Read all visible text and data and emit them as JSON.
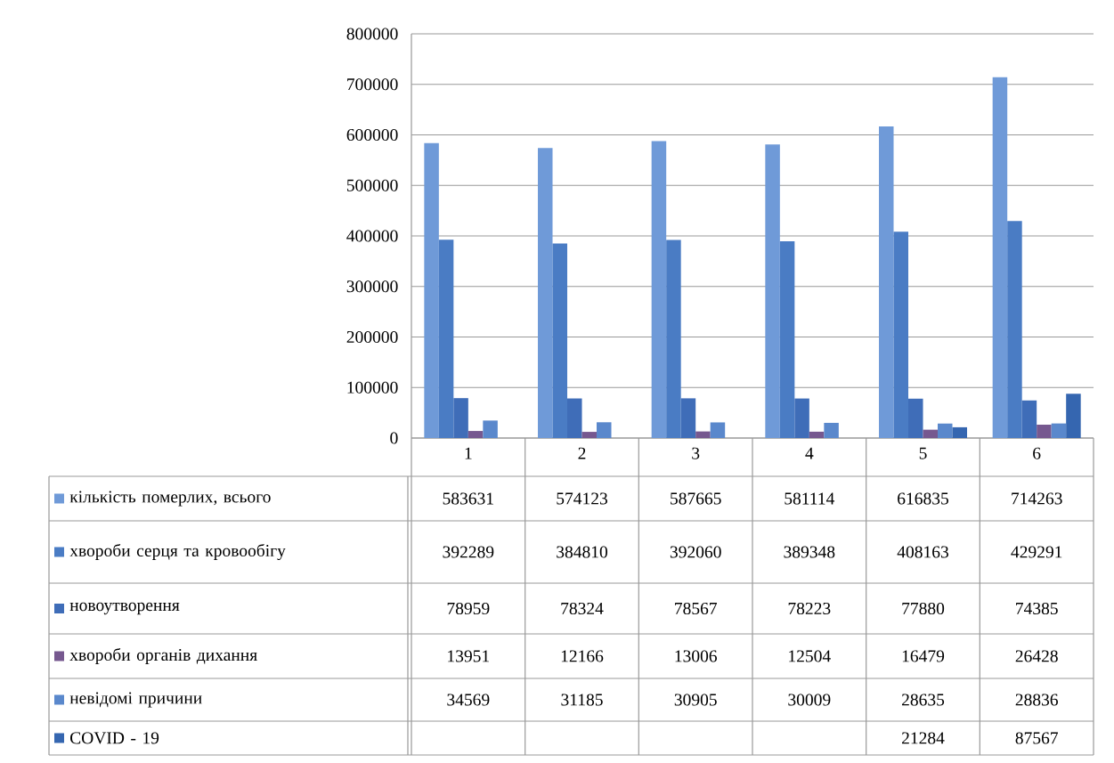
{
  "chart_data": {
    "type": "bar",
    "categories": [
      "1",
      "2",
      "3",
      "4",
      "5",
      "6"
    ],
    "series": [
      {
        "name": "кількість померлих, всього",
        "color": "#6f9ad8",
        "values": [
          583631,
          574123,
          587665,
          581114,
          616835,
          714263
        ]
      },
      {
        "name": "хвороби серця та кровообігу",
        "color": "#4a7cc4",
        "values": [
          392289,
          384810,
          392060,
          389348,
          408163,
          429291
        ]
      },
      {
        "name": "новоутворення",
        "color": "#3f6db8",
        "values": [
          78959,
          78324,
          78567,
          78223,
          77880,
          74385
        ]
      },
      {
        "name": "хвороби органів дихання",
        "color": "#76588f",
        "values": [
          13951,
          12166,
          13006,
          12504,
          16479,
          26428
        ]
      },
      {
        "name": "невідомі причини",
        "color": "#5a88cc",
        "values": [
          34569,
          31185,
          30905,
          30009,
          28635,
          28836
        ]
      },
      {
        "name": "COVID - 19",
        "color": "#3566b0",
        "values": [
          null,
          null,
          null,
          null,
          21284,
          87567
        ]
      }
    ],
    "ylim": [
      0,
      800000
    ],
    "yticks": [
      0,
      100000,
      200000,
      300000,
      400000,
      500000,
      600000,
      700000,
      800000
    ],
    "grid": "y",
    "legend": "bottom",
    "data_labels": true
  }
}
